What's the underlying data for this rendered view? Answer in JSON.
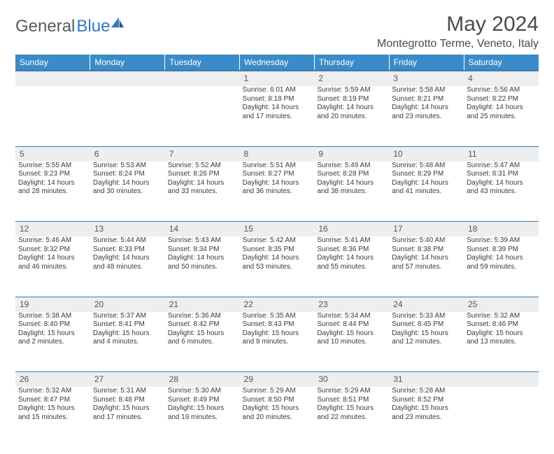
{
  "brand": {
    "part1": "General",
    "part2": "Blue"
  },
  "title": "May 2024",
  "location": "Montegrotto Terme, Veneto, Italy",
  "colors": {
    "header_bg": "#3b8bc8",
    "header_text": "#ffffff",
    "daynum_bg": "#eceef0",
    "rule": "#3b79ad",
    "text": "#3a3a3a",
    "brand_gray": "#555b62",
    "brand_blue": "#2f7bbf"
  },
  "weekdays": [
    "Sunday",
    "Monday",
    "Tuesday",
    "Wednesday",
    "Thursday",
    "Friday",
    "Saturday"
  ],
  "weeks": [
    {
      "nums": [
        "",
        "",
        "",
        "1",
        "2",
        "3",
        "4"
      ],
      "cells": [
        null,
        null,
        null,
        {
          "sr": "Sunrise: 6:01 AM",
          "ss": "Sunset: 8:18 PM",
          "d1": "Daylight: 14 hours",
          "d2": "and 17 minutes."
        },
        {
          "sr": "Sunrise: 5:59 AM",
          "ss": "Sunset: 8:19 PM",
          "d1": "Daylight: 14 hours",
          "d2": "and 20 minutes."
        },
        {
          "sr": "Sunrise: 5:58 AM",
          "ss": "Sunset: 8:21 PM",
          "d1": "Daylight: 14 hours",
          "d2": "and 23 minutes."
        },
        {
          "sr": "Sunrise: 5:56 AM",
          "ss": "Sunset: 8:22 PM",
          "d1": "Daylight: 14 hours",
          "d2": "and 25 minutes."
        }
      ]
    },
    {
      "nums": [
        "5",
        "6",
        "7",
        "8",
        "9",
        "10",
        "11"
      ],
      "cells": [
        {
          "sr": "Sunrise: 5:55 AM",
          "ss": "Sunset: 8:23 PM",
          "d1": "Daylight: 14 hours",
          "d2": "and 28 minutes."
        },
        {
          "sr": "Sunrise: 5:53 AM",
          "ss": "Sunset: 8:24 PM",
          "d1": "Daylight: 14 hours",
          "d2": "and 30 minutes."
        },
        {
          "sr": "Sunrise: 5:52 AM",
          "ss": "Sunset: 8:26 PM",
          "d1": "Daylight: 14 hours",
          "d2": "and 33 minutes."
        },
        {
          "sr": "Sunrise: 5:51 AM",
          "ss": "Sunset: 8:27 PM",
          "d1": "Daylight: 14 hours",
          "d2": "and 36 minutes."
        },
        {
          "sr": "Sunrise: 5:49 AM",
          "ss": "Sunset: 8:28 PM",
          "d1": "Daylight: 14 hours",
          "d2": "and 38 minutes."
        },
        {
          "sr": "Sunrise: 5:48 AM",
          "ss": "Sunset: 8:29 PM",
          "d1": "Daylight: 14 hours",
          "d2": "and 41 minutes."
        },
        {
          "sr": "Sunrise: 5:47 AM",
          "ss": "Sunset: 8:31 PM",
          "d1": "Daylight: 14 hours",
          "d2": "and 43 minutes."
        }
      ]
    },
    {
      "nums": [
        "12",
        "13",
        "14",
        "15",
        "16",
        "17",
        "18"
      ],
      "cells": [
        {
          "sr": "Sunrise: 5:46 AM",
          "ss": "Sunset: 8:32 PM",
          "d1": "Daylight: 14 hours",
          "d2": "and 46 minutes."
        },
        {
          "sr": "Sunrise: 5:44 AM",
          "ss": "Sunset: 8:33 PM",
          "d1": "Daylight: 14 hours",
          "d2": "and 48 minutes."
        },
        {
          "sr": "Sunrise: 5:43 AM",
          "ss": "Sunset: 8:34 PM",
          "d1": "Daylight: 14 hours",
          "d2": "and 50 minutes."
        },
        {
          "sr": "Sunrise: 5:42 AM",
          "ss": "Sunset: 8:35 PM",
          "d1": "Daylight: 14 hours",
          "d2": "and 53 minutes."
        },
        {
          "sr": "Sunrise: 5:41 AM",
          "ss": "Sunset: 8:36 PM",
          "d1": "Daylight: 14 hours",
          "d2": "and 55 minutes."
        },
        {
          "sr": "Sunrise: 5:40 AM",
          "ss": "Sunset: 8:38 PM",
          "d1": "Daylight: 14 hours",
          "d2": "and 57 minutes."
        },
        {
          "sr": "Sunrise: 5:39 AM",
          "ss": "Sunset: 8:39 PM",
          "d1": "Daylight: 14 hours",
          "d2": "and 59 minutes."
        }
      ]
    },
    {
      "nums": [
        "19",
        "20",
        "21",
        "22",
        "23",
        "24",
        "25"
      ],
      "cells": [
        {
          "sr": "Sunrise: 5:38 AM",
          "ss": "Sunset: 8:40 PM",
          "d1": "Daylight: 15 hours",
          "d2": "and 2 minutes."
        },
        {
          "sr": "Sunrise: 5:37 AM",
          "ss": "Sunset: 8:41 PM",
          "d1": "Daylight: 15 hours",
          "d2": "and 4 minutes."
        },
        {
          "sr": "Sunrise: 5:36 AM",
          "ss": "Sunset: 8:42 PM",
          "d1": "Daylight: 15 hours",
          "d2": "and 6 minutes."
        },
        {
          "sr": "Sunrise: 5:35 AM",
          "ss": "Sunset: 8:43 PM",
          "d1": "Daylight: 15 hours",
          "d2": "and 8 minutes."
        },
        {
          "sr": "Sunrise: 5:34 AM",
          "ss": "Sunset: 8:44 PM",
          "d1": "Daylight: 15 hours",
          "d2": "and 10 minutes."
        },
        {
          "sr": "Sunrise: 5:33 AM",
          "ss": "Sunset: 8:45 PM",
          "d1": "Daylight: 15 hours",
          "d2": "and 12 minutes."
        },
        {
          "sr": "Sunrise: 5:32 AM",
          "ss": "Sunset: 8:46 PM",
          "d1": "Daylight: 15 hours",
          "d2": "and 13 minutes."
        }
      ]
    },
    {
      "nums": [
        "26",
        "27",
        "28",
        "29",
        "30",
        "31",
        ""
      ],
      "cells": [
        {
          "sr": "Sunrise: 5:32 AM",
          "ss": "Sunset: 8:47 PM",
          "d1": "Daylight: 15 hours",
          "d2": "and 15 minutes."
        },
        {
          "sr": "Sunrise: 5:31 AM",
          "ss": "Sunset: 8:48 PM",
          "d1": "Daylight: 15 hours",
          "d2": "and 17 minutes."
        },
        {
          "sr": "Sunrise: 5:30 AM",
          "ss": "Sunset: 8:49 PM",
          "d1": "Daylight: 15 hours",
          "d2": "and 19 minutes."
        },
        {
          "sr": "Sunrise: 5:29 AM",
          "ss": "Sunset: 8:50 PM",
          "d1": "Daylight: 15 hours",
          "d2": "and 20 minutes."
        },
        {
          "sr": "Sunrise: 5:29 AM",
          "ss": "Sunset: 8:51 PM",
          "d1": "Daylight: 15 hours",
          "d2": "and 22 minutes."
        },
        {
          "sr": "Sunrise: 5:28 AM",
          "ss": "Sunset: 8:52 PM",
          "d1": "Daylight: 15 hours",
          "d2": "and 23 minutes."
        },
        null
      ]
    }
  ]
}
